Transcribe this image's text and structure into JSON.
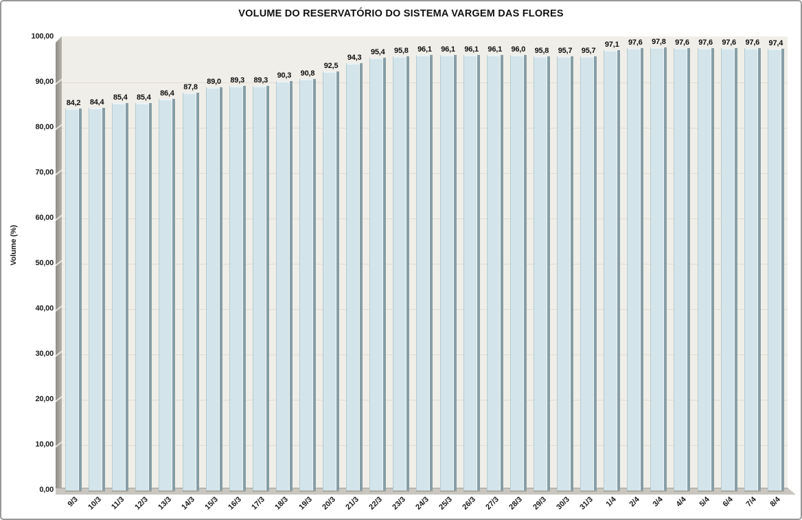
{
  "chart_data": {
    "type": "bar",
    "title": "VOLUME DO RESERVATÓRIO DO SISTEMA VARGEM DAS FLORES",
    "xlabel": "",
    "ylabel": "Volume (%)",
    "ylim": [
      0,
      100
    ],
    "grid": true,
    "legend": false,
    "y_tick_labels": [
      "0,00",
      "10,00",
      "20,00",
      "30,00",
      "40,00",
      "50,00",
      "60,00",
      "70,00",
      "80,00",
      "90,00",
      "100,00"
    ],
    "categories": [
      "9/3",
      "10/3",
      "11/3",
      "12/3",
      "13/3",
      "14/3",
      "15/3",
      "16/3",
      "17/3",
      "18/3",
      "19/3",
      "20/3",
      "21/3",
      "22/3",
      "23/3",
      "24/3",
      "25/3",
      "26/3",
      "27/3",
      "28/3",
      "29/3",
      "30/3",
      "31/3",
      "1/4",
      "2/4",
      "3/4",
      "4/4",
      "5/4",
      "6/4",
      "7/4",
      "8/4"
    ],
    "values": [
      84.2,
      84.4,
      85.4,
      85.4,
      86.4,
      87.8,
      89.0,
      89.3,
      89.3,
      90.3,
      90.8,
      92.5,
      94.3,
      95.4,
      95.8,
      96.1,
      96.1,
      96.1,
      96.1,
      96.0,
      95.8,
      95.7,
      95.7,
      97.1,
      97.6,
      97.8,
      97.6,
      97.6,
      97.6,
      97.6,
      97.4
    ],
    "value_labels": [
      "84,2",
      "84,4",
      "85,4",
      "85,4",
      "86,4",
      "87,8",
      "89,0",
      "89,3",
      "89,3",
      "90,3",
      "90,8",
      "92,5",
      "94,3",
      "95,4",
      "95,8",
      "96,1",
      "96,1",
      "96,1",
      "96,1",
      "96,0",
      "95,8",
      "95,7",
      "95,7",
      "97,1",
      "97,6",
      "97,8",
      "97,6",
      "97,6",
      "97,6",
      "97,6",
      "97,4"
    ],
    "colors": {
      "bar_fill": "#d3e5ea",
      "bar_edge": "#869ea6",
      "bar_top": "#eaf2f5",
      "plot_bg": "#f0eee8",
      "gridline": "#dedcd4",
      "floor": "#c8c6bf"
    }
  }
}
